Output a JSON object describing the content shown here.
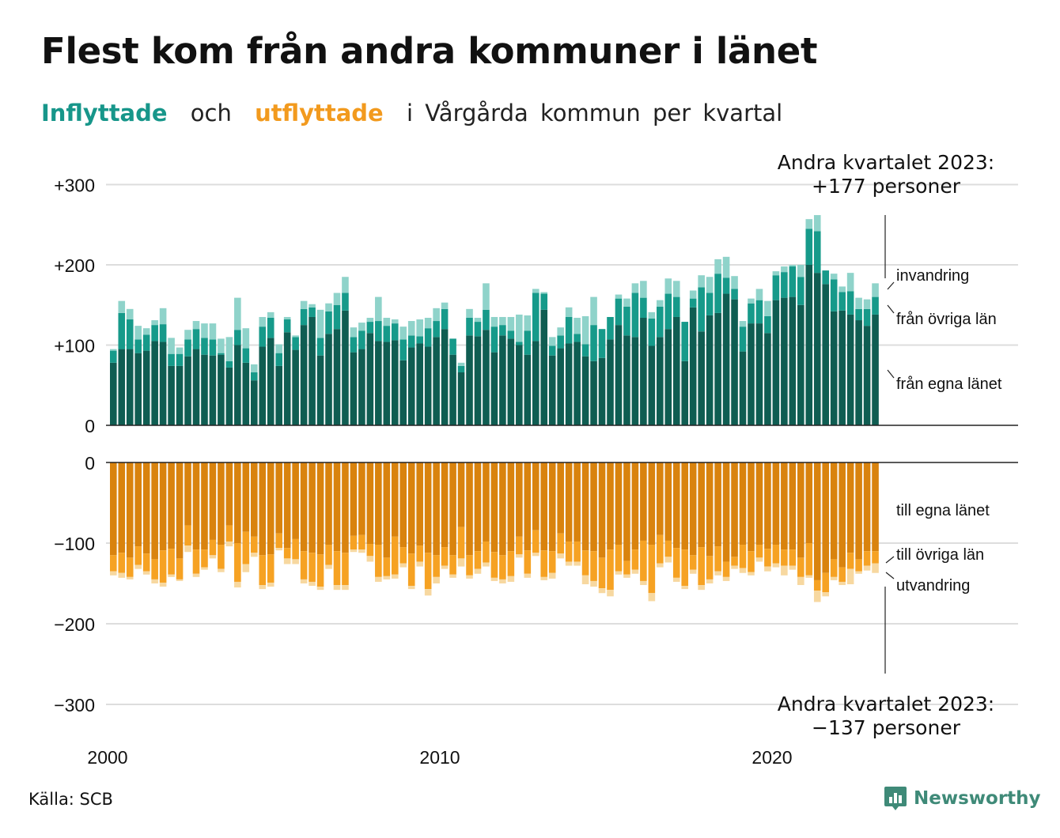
{
  "title": "Flest kom från andra kommuner i länet",
  "subtitle": {
    "inflow": "Inflyttade",
    "and": "och",
    "outflow": "utflyttade",
    "rest": "i Vårgårda kommun per kvartal"
  },
  "colors": {
    "in_own_county": "#0f5d52",
    "in_other_counties": "#169a8a",
    "in_immigration": "#8fd3ca",
    "out_own_county": "#d9830e",
    "out_other_counties": "#f6a223",
    "out_emigration": "#f7d8a0",
    "grid": "#dddddd",
    "axis": "#222222",
    "brand": "#3f8a78"
  },
  "source": "Källa: SCB",
  "brand": "Newsworthy",
  "chart_data": {
    "type": "bar",
    "stacked": true,
    "x_label_interval": "quarter",
    "x_start": "2000 Q1",
    "x_end": "2023 Q2",
    "x_tick_labels": [
      "2000",
      "2010",
      "2020"
    ],
    "y_ticks_top": [
      "+300",
      "+200",
      "+100",
      "0"
    ],
    "y_ticks_bottom": [
      "0",
      "−100",
      "−200",
      "−300"
    ],
    "inflow_ylim": [
      0,
      300
    ],
    "outflow_ylim": [
      -300,
      0
    ],
    "grid": true,
    "annotation_top": {
      "line1": "Andra kvartalet 2023:",
      "line2": "+177 personer"
    },
    "annotation_bottom": {
      "line1": "Andra kvartalet 2023:",
      "line2": "−137 personer"
    },
    "inflow_series": [
      {
        "name": "från egna länet",
        "values": [
          78,
          95,
          95,
          90,
          93,
          105,
          104,
          74,
          74,
          86,
          95,
          88,
          87,
          88,
          72,
          100,
          78,
          56,
          98,
          109,
          74,
          116,
          94,
          125,
          135,
          87,
          114,
          120,
          143,
          91,
          95,
          115,
          105,
          104,
          106,
          81,
          97,
          102,
          98,
          110,
          120,
          88,
          66,
          112,
          111,
          119,
          91,
          112,
          108,
          100,
          88,
          105,
          144,
          87,
          96,
          102,
          104,
          86,
          80,
          84,
          107,
          125,
          112,
          110,
          134,
          99,
          110,
          120,
          135,
          80,
          147,
          117,
          137,
          140,
          164,
          157,
          92,
          127,
          127,
          115,
          156,
          159,
          160,
          150,
          200,
          190,
          176,
          142,
          143,
          138,
          131,
          124,
          138
        ],
        "labels": [
          {
            "text": "från egna länet",
            "kind": "label"
          }
        ]
      },
      {
        "name": "från övriga län",
        "values": [
          15,
          45,
          37,
          17,
          20,
          20,
          22,
          15,
          15,
          21,
          25,
          21,
          20,
          2,
          8,
          19,
          18,
          10,
          25,
          25,
          16,
          16,
          16,
          20,
          12,
          22,
          28,
          30,
          22,
          19,
          23,
          14,
          25,
          20,
          21,
          26,
          15,
          9,
          23,
          20,
          25,
          20,
          8,
          22,
          18,
          25,
          32,
          13,
          10,
          4,
          30,
          60,
          20,
          12,
          16,
          33,
          10,
          15,
          45,
          36,
          28,
          33,
          36,
          55,
          25,
          34,
          38,
          44,
          25,
          49,
          11,
          55,
          28,
          49,
          20,
          13,
          31,
          25,
          29,
          21,
          31,
          32,
          38,
          35,
          45,
          52,
          17,
          40,
          23,
          29,
          14,
          21,
          22
        ],
        "labels": [
          {
            "text": "från övriga län",
            "kind": "label"
          }
        ]
      },
      {
        "name": "invandring",
        "values": [
          2,
          15,
          13,
          17,
          8,
          6,
          20,
          20,
          8,
          12,
          10,
          18,
          20,
          18,
          30,
          40,
          25,
          10,
          12,
          7,
          11,
          3,
          2,
          10,
          4,
          35,
          10,
          15,
          20,
          12,
          10,
          5,
          30,
          10,
          5,
          16,
          18,
          21,
          13,
          16,
          8,
          0,
          4,
          11,
          5,
          33,
          12,
          10,
          17,
          34,
          19,
          5,
          2,
          11,
          10,
          12,
          20,
          35,
          35,
          0,
          0,
          5,
          10,
          12,
          21,
          8,
          8,
          19,
          20,
          0,
          10,
          15,
          20,
          18,
          26,
          16,
          7,
          6,
          14,
          19,
          5,
          7,
          2,
          15,
          12,
          20,
          0,
          7,
          7,
          23,
          14,
          12,
          17
        ],
        "labels": [
          {
            "text": "invandring",
            "kind": "label"
          }
        ]
      }
    ],
    "outflow_series": [
      {
        "name": "till egna länet",
        "values": [
          -115,
          -112,
          -118,
          -104,
          -113,
          -120,
          -109,
          -107,
          -119,
          -78,
          -108,
          -108,
          -96,
          -102,
          -78,
          -100,
          -86,
          -92,
          -115,
          -114,
          -88,
          -106,
          -95,
          -110,
          -112,
          -114,
          -102,
          -110,
          -112,
          -91,
          -90,
          -101,
          -102,
          -118,
          -92,
          -105,
          -113,
          -103,
          -112,
          -115,
          -105,
          -115,
          -80,
          -115,
          -110,
          -98,
          -111,
          -115,
          -110,
          -92,
          -109,
          -84,
          -109,
          -110,
          -88,
          -98,
          -98,
          -109,
          -110,
          -118,
          -108,
          -102,
          -122,
          -108,
          -97,
          -102,
          -90,
          -97,
          -106,
          -108,
          -115,
          -105,
          -116,
          -104,
          -123,
          -117,
          -102,
          -110,
          -102,
          -107,
          -102,
          -108,
          -108,
          -118,
          -100,
          -146,
          -137,
          -120,
          -130,
          -112,
          -120,
          -110,
          -110
        ],
        "labels": [
          {
            "text": "till egna länet",
            "kind": "label"
          }
        ]
      },
      {
        "name": "till övriga län",
        "values": [
          -20,
          -25,
          -24,
          -23,
          -22,
          -25,
          -40,
          -32,
          -26,
          -25,
          -30,
          -22,
          -19,
          -30,
          -20,
          -48,
          -40,
          -20,
          -37,
          -35,
          -18,
          -13,
          -25,
          -35,
          -36,
          -40,
          -25,
          -42,
          -40,
          -17,
          -18,
          -15,
          -40,
          -23,
          -47,
          -20,
          -40,
          -20,
          -45,
          -27,
          -23,
          -24,
          -39,
          -25,
          -22,
          -26,
          -32,
          -30,
          -31,
          -22,
          -29,
          -28,
          -33,
          -27,
          -25,
          -25,
          -25,
          -31,
          -37,
          -38,
          -50,
          -33,
          -17,
          -25,
          -50,
          -60,
          -35,
          -20,
          -37,
          -45,
          -18,
          -47,
          -29,
          -31,
          -19,
          -11,
          -29,
          -26,
          -16,
          -22,
          -23,
          -20,
          -20,
          -24,
          -40,
          -13,
          -24,
          -22,
          -18,
          -20,
          -15,
          -18,
          -15
        ],
        "labels": [
          {
            "text": "till övriga län",
            "kind": "label"
          }
        ]
      },
      {
        "name": "utvandring",
        "values": [
          -5,
          -6,
          -3,
          -5,
          -4,
          -5,
          -5,
          -3,
          -2,
          -8,
          -4,
          -3,
          -4,
          -4,
          -6,
          -7,
          -10,
          -5,
          -5,
          -5,
          -3,
          -7,
          -6,
          -5,
          -5,
          -4,
          -5,
          -6,
          -6,
          -3,
          -4,
          -7,
          -6,
          -4,
          -5,
          -5,
          -4,
          -6,
          -8,
          -8,
          -4,
          -4,
          -10,
          -4,
          -6,
          -5,
          -4,
          -5,
          -7,
          -4,
          -5,
          -4,
          -4,
          -7,
          -6,
          -5,
          -5,
          -11,
          -7,
          -6,
          -8,
          -4,
          -4,
          -5,
          -5,
          -10,
          -5,
          -7,
          -5,
          -4,
          -5,
          -6,
          -5,
          -5,
          -5,
          -4,
          -6,
          -4,
          -5,
          -6,
          -5,
          -12,
          -5,
          -10,
          -3,
          -14,
          -5,
          -4,
          -4,
          -19,
          -3,
          -6,
          -12
        ],
        "labels": [
          {
            "text": "utvandring",
            "kind": "label"
          }
        ]
      }
    ],
    "label_top_inv": "invandring",
    "label_top_ovr": "från övriga län",
    "label_top_egna": "från egna länet",
    "label_bot_egna": "till egna länet",
    "label_bot_ovr": "till övriga län",
    "label_bot_utv": "utvandring"
  }
}
